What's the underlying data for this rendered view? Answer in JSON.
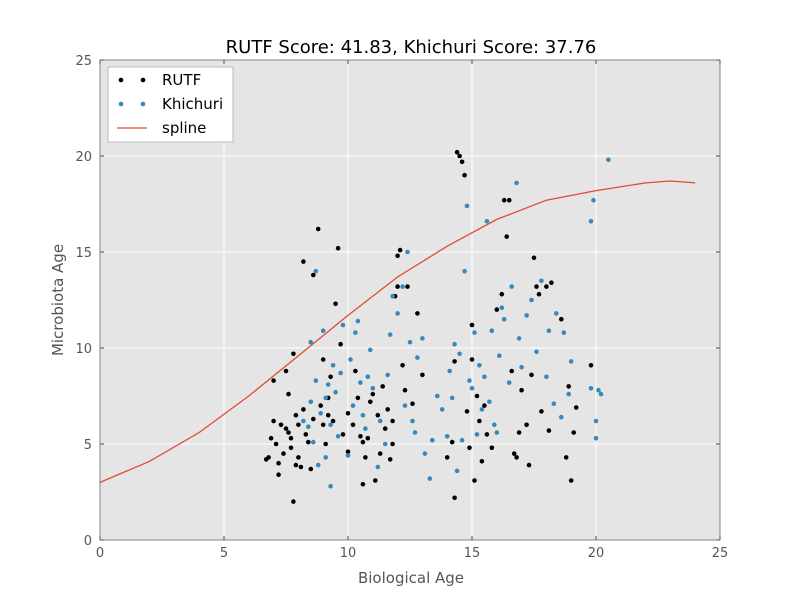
{
  "chart_data": {
    "type": "scatter",
    "title": "RUTF Score: 41.83, Khichuri Score: 37.76",
    "xlabel": "Biological Age",
    "ylabel": "Microbiota Age",
    "xlim": [
      0,
      25
    ],
    "ylim": [
      0,
      25
    ],
    "xticks": [
      0,
      5,
      10,
      15,
      20,
      25
    ],
    "yticks": [
      0,
      5,
      10,
      15,
      20,
      25
    ],
    "grid": true,
    "legend_position": "top-left",
    "colors": {
      "background": "#e5e5e5",
      "grid": "#ffffff",
      "rutf": "#000000",
      "khichuri": "#348abd",
      "spline": "#e24a33"
    },
    "series": [
      {
        "name": "RUTF",
        "kind": "points",
        "points": [
          [
            6.7,
            4.2
          ],
          [
            6.8,
            4.3
          ],
          [
            6.9,
            5.3
          ],
          [
            7.0,
            8.3
          ],
          [
            7.0,
            6.2
          ],
          [
            7.1,
            5.0
          ],
          [
            7.2,
            4.0
          ],
          [
            7.2,
            3.4
          ],
          [
            7.3,
            6.0
          ],
          [
            7.4,
            4.5
          ],
          [
            7.5,
            8.8
          ],
          [
            7.5,
            5.8
          ],
          [
            7.6,
            5.6
          ],
          [
            7.6,
            7.6
          ],
          [
            7.7,
            5.3
          ],
          [
            7.7,
            4.8
          ],
          [
            7.8,
            9.7
          ],
          [
            7.9,
            6.5
          ],
          [
            7.9,
            3.9
          ],
          [
            7.8,
            2.0
          ],
          [
            8.0,
            6.0
          ],
          [
            8.0,
            4.3
          ],
          [
            8.1,
            3.8
          ],
          [
            8.2,
            14.5
          ],
          [
            8.2,
            6.8
          ],
          [
            8.3,
            5.5
          ],
          [
            8.4,
            5.1
          ],
          [
            8.5,
            3.7
          ],
          [
            8.6,
            6.3
          ],
          [
            8.6,
            13.8
          ],
          [
            8.8,
            16.2
          ],
          [
            8.9,
            7.0
          ],
          [
            9.0,
            9.4
          ],
          [
            9.0,
            6.0
          ],
          [
            9.1,
            5.0
          ],
          [
            9.2,
            7.4
          ],
          [
            9.3,
            8.5
          ],
          [
            9.4,
            6.2
          ],
          [
            9.5,
            12.3
          ],
          [
            9.6,
            15.2
          ],
          [
            9.7,
            10.2
          ],
          [
            9.8,
            5.5
          ],
          [
            10.0,
            6.6
          ],
          [
            10.0,
            4.6
          ],
          [
            10.2,
            6.0
          ],
          [
            10.3,
            8.8
          ],
          [
            10.4,
            7.4
          ],
          [
            10.5,
            5.4
          ],
          [
            10.6,
            5.1
          ],
          [
            10.6,
            2.9
          ],
          [
            10.7,
            4.3
          ],
          [
            10.8,
            5.3
          ],
          [
            10.9,
            7.2
          ],
          [
            11.0,
            7.6
          ],
          [
            11.1,
            3.1
          ],
          [
            11.2,
            6.5
          ],
          [
            11.3,
            4.5
          ],
          [
            11.4,
            8.0
          ],
          [
            11.5,
            5.8
          ],
          [
            11.6,
            6.8
          ],
          [
            11.7,
            4.2
          ],
          [
            11.8,
            5.0
          ],
          [
            11.9,
            12.7
          ],
          [
            12.0,
            13.2
          ],
          [
            12.0,
            14.8
          ],
          [
            12.1,
            15.1
          ],
          [
            12.2,
            9.1
          ],
          [
            12.3,
            7.8
          ],
          [
            12.4,
            13.2
          ],
          [
            12.6,
            7.1
          ],
          [
            12.8,
            11.8
          ],
          [
            13.0,
            8.6
          ],
          [
            14.0,
            4.3
          ],
          [
            14.2,
            5.1
          ],
          [
            14.3,
            2.2
          ],
          [
            14.4,
            20.2
          ],
          [
            14.5,
            20.0
          ],
          [
            14.6,
            19.7
          ],
          [
            14.7,
            19.0
          ],
          [
            14.8,
            6.7
          ],
          [
            14.9,
            4.8
          ],
          [
            15.0,
            11.2
          ],
          [
            15.0,
            9.4
          ],
          [
            15.1,
            3.1
          ],
          [
            15.2,
            7.5
          ],
          [
            15.3,
            6.2
          ],
          [
            15.4,
            4.1
          ],
          [
            15.5,
            7.0
          ],
          [
            15.6,
            5.5
          ],
          [
            15.8,
            4.8
          ],
          [
            16.0,
            12.0
          ],
          [
            16.2,
            12.8
          ],
          [
            16.3,
            17.7
          ],
          [
            16.4,
            15.8
          ],
          [
            16.5,
            17.7
          ],
          [
            16.6,
            8.8
          ],
          [
            16.7,
            4.5
          ],
          [
            16.8,
            4.3
          ],
          [
            16.9,
            5.6
          ],
          [
            17.0,
            7.8
          ],
          [
            17.2,
            6.0
          ],
          [
            17.3,
            3.9
          ],
          [
            17.4,
            8.6
          ],
          [
            17.5,
            14.7
          ],
          [
            17.6,
            13.2
          ],
          [
            17.7,
            12.8
          ],
          [
            17.8,
            6.7
          ],
          [
            18.0,
            13.2
          ],
          [
            18.1,
            5.7
          ],
          [
            18.2,
            13.4
          ],
          [
            18.6,
            11.5
          ],
          [
            18.8,
            4.3
          ],
          [
            18.9,
            8.0
          ],
          [
            19.0,
            3.1
          ],
          [
            19.1,
            5.6
          ],
          [
            19.2,
            6.9
          ],
          [
            19.8,
            9.1
          ],
          [
            14.3,
            9.3
          ],
          [
            9.2,
            6.5
          ],
          [
            11.8,
            6.2
          ]
        ]
      },
      {
        "name": "Khichuri",
        "kind": "points",
        "points": [
          [
            8.2,
            6.2
          ],
          [
            8.4,
            5.9
          ],
          [
            8.5,
            7.2
          ],
          [
            8.5,
            10.3
          ],
          [
            8.6,
            5.1
          ],
          [
            8.7,
            8.3
          ],
          [
            8.7,
            14.0
          ],
          [
            8.8,
            3.9
          ],
          [
            8.9,
            6.6
          ],
          [
            9.0,
            10.9
          ],
          [
            9.1,
            7.4
          ],
          [
            9.1,
            4.3
          ],
          [
            9.2,
            8.1
          ],
          [
            9.3,
            2.8
          ],
          [
            9.3,
            6.0
          ],
          [
            9.4,
            9.1
          ],
          [
            9.5,
            7.7
          ],
          [
            9.6,
            5.4
          ],
          [
            9.7,
            8.7
          ],
          [
            9.8,
            11.2
          ],
          [
            10.0,
            4.4
          ],
          [
            10.1,
            9.4
          ],
          [
            10.2,
            7.0
          ],
          [
            10.3,
            10.8
          ],
          [
            10.4,
            11.4
          ],
          [
            10.5,
            8.2
          ],
          [
            10.6,
            6.5
          ],
          [
            10.7,
            5.8
          ],
          [
            10.9,
            9.9
          ],
          [
            11.0,
            7.9
          ],
          [
            11.2,
            3.8
          ],
          [
            11.3,
            6.2
          ],
          [
            11.5,
            5.0
          ],
          [
            11.6,
            8.6
          ],
          [
            11.7,
            10.7
          ],
          [
            11.8,
            12.7
          ],
          [
            12.0,
            11.8
          ],
          [
            12.2,
            13.2
          ],
          [
            12.3,
            7.0
          ],
          [
            12.4,
            15.0
          ],
          [
            12.5,
            10.3
          ],
          [
            12.6,
            6.2
          ],
          [
            12.7,
            5.6
          ],
          [
            12.8,
            9.5
          ],
          [
            13.0,
            10.5
          ],
          [
            13.1,
            4.5
          ],
          [
            13.3,
            3.2
          ],
          [
            13.4,
            5.2
          ],
          [
            13.6,
            7.5
          ],
          [
            13.8,
            6.8
          ],
          [
            14.0,
            5.4
          ],
          [
            14.1,
            8.8
          ],
          [
            14.2,
            7.4
          ],
          [
            14.3,
            10.2
          ],
          [
            14.4,
            3.6
          ],
          [
            14.5,
            9.7
          ],
          [
            14.6,
            5.2
          ],
          [
            14.7,
            14.0
          ],
          [
            14.8,
            17.4
          ],
          [
            14.9,
            8.3
          ],
          [
            15.0,
            7.9
          ],
          [
            15.1,
            10.8
          ],
          [
            15.2,
            5.5
          ],
          [
            15.3,
            9.1
          ],
          [
            15.4,
            6.8
          ],
          [
            15.5,
            8.5
          ],
          [
            15.6,
            16.6
          ],
          [
            15.7,
            7.2
          ],
          [
            15.8,
            10.9
          ],
          [
            15.9,
            6.0
          ],
          [
            16.0,
            5.6
          ],
          [
            16.1,
            9.6
          ],
          [
            16.2,
            12.1
          ],
          [
            16.3,
            11.5
          ],
          [
            16.5,
            8.2
          ],
          [
            16.6,
            13.2
          ],
          [
            16.8,
            18.6
          ],
          [
            16.9,
            10.5
          ],
          [
            17.0,
            9.0
          ],
          [
            17.2,
            11.7
          ],
          [
            17.4,
            12.5
          ],
          [
            17.6,
            9.8
          ],
          [
            17.8,
            13.5
          ],
          [
            18.0,
            8.5
          ],
          [
            18.1,
            10.9
          ],
          [
            18.3,
            7.1
          ],
          [
            18.4,
            11.8
          ],
          [
            18.6,
            6.4
          ],
          [
            18.7,
            10.8
          ],
          [
            18.9,
            7.6
          ],
          [
            19.0,
            9.3
          ],
          [
            19.8,
            7.9
          ],
          [
            19.9,
            17.7
          ],
          [
            20.0,
            5.3
          ],
          [
            20.1,
            7.8
          ],
          [
            20.5,
            19.8
          ],
          [
            19.8,
            16.6
          ],
          [
            20.0,
            6.2
          ],
          [
            20.2,
            7.6
          ],
          [
            10.8,
            8.5
          ]
        ]
      },
      {
        "name": "spline",
        "kind": "line",
        "points": [
          [
            0,
            3.0
          ],
          [
            2,
            4.1
          ],
          [
            4,
            5.6
          ],
          [
            6,
            7.5
          ],
          [
            8,
            9.6
          ],
          [
            10,
            11.7
          ],
          [
            12,
            13.7
          ],
          [
            14,
            15.3
          ],
          [
            16,
            16.7
          ],
          [
            18,
            17.7
          ],
          [
            20,
            18.2
          ],
          [
            22,
            18.6
          ],
          [
            23,
            18.7
          ],
          [
            24,
            18.6
          ]
        ]
      }
    ]
  }
}
